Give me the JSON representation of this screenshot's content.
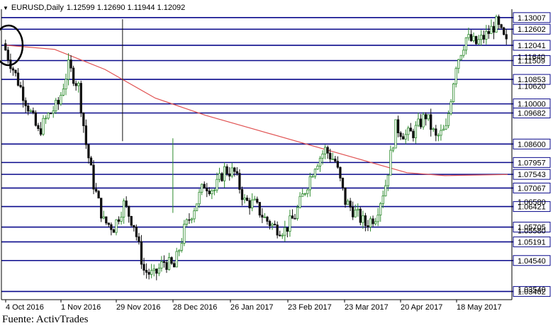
{
  "header": {
    "symbol": "EURUSD,Daily",
    "ohlc": "1.12599 1.12690 1.11944 1.12092",
    "menu_icon": "triangle-down-icon"
  },
  "source": "Fuente: ActivTrades",
  "colors": {
    "up_candle": "#2e8b2e",
    "down_candle": "#111111",
    "sr_lines": "#0a0a8c",
    "moving_average": "#e05050",
    "frame": "#000000"
  },
  "chart_data": {
    "type": "line",
    "title": "EURUSD,Daily",
    "ylim": [
      1.0325,
      1.1325
    ],
    "xlabel": "",
    "ylabel": "",
    "grid": false,
    "x_ticks": [
      "4 Oct 2016",
      "1 Nov 2016",
      "29 Nov 2016",
      "28 Dec 2016",
      "26 Jan 2017",
      "23 Feb 2017",
      "23 Mar 2017",
      "20 Apr 2017",
      "18 May 2017"
    ],
    "y_tick_labels_partial": [
      "1.11640",
      "1.10620",
      "1.06580",
      "1.05580",
      "1.03540"
    ],
    "horizontal_levels": [
      1.13007,
      1.12602,
      1.12041,
      1.11509,
      1.10853,
      1.1,
      1.09682,
      1.086,
      1.07957,
      1.07543,
      1.07067,
      1.06421,
      1.05705,
      1.05191,
      1.0454,
      1.03462
    ],
    "highlighted_level": 1.12041,
    "series": [
      {
        "type": "moving_average",
        "x_index": [
          0,
          20,
          40,
          60,
          80,
          100,
          120,
          140,
          160,
          175,
          200
        ],
        "y": [
          1.1205,
          1.119,
          1.112,
          1.102,
          1.096,
          1.091,
          1.086,
          1.081,
          1.076,
          1.075,
          1.0754
        ]
      },
      {
        "type": "close_path",
        "x_index": [
          0,
          5,
          10,
          14,
          18,
          22,
          26,
          30,
          33,
          36,
          40,
          44,
          48,
          52,
          56,
          60,
          64,
          68,
          72,
          76,
          80,
          84,
          88,
          92,
          96,
          100,
          104,
          108,
          112,
          116,
          120,
          124,
          128,
          132,
          136,
          140,
          144,
          148,
          152,
          156,
          160,
          163,
          168,
          172,
          176,
          180,
          184,
          188,
          192,
          196,
          200
        ],
        "y": [
          1.121,
          1.11,
          1.099,
          1.09,
          1.096,
          1.1,
          1.113,
          1.106,
          1.086,
          1.072,
          1.059,
          1.057,
          1.065,
          1.058,
          1.042,
          1.04,
          1.045,
          1.043,
          1.056,
          1.064,
          1.072,
          1.07,
          1.077,
          1.076,
          1.066,
          1.065,
          1.06,
          1.057,
          1.056,
          1.061,
          1.07,
          1.079,
          1.084,
          1.08,
          1.066,
          1.062,
          1.058,
          1.061,
          1.072,
          1.092,
          1.089,
          1.09,
          1.096,
          1.088,
          1.091,
          1.114,
          1.123,
          1.121,
          1.124,
          1.128,
          1.1209
        ]
      }
    ]
  }
}
